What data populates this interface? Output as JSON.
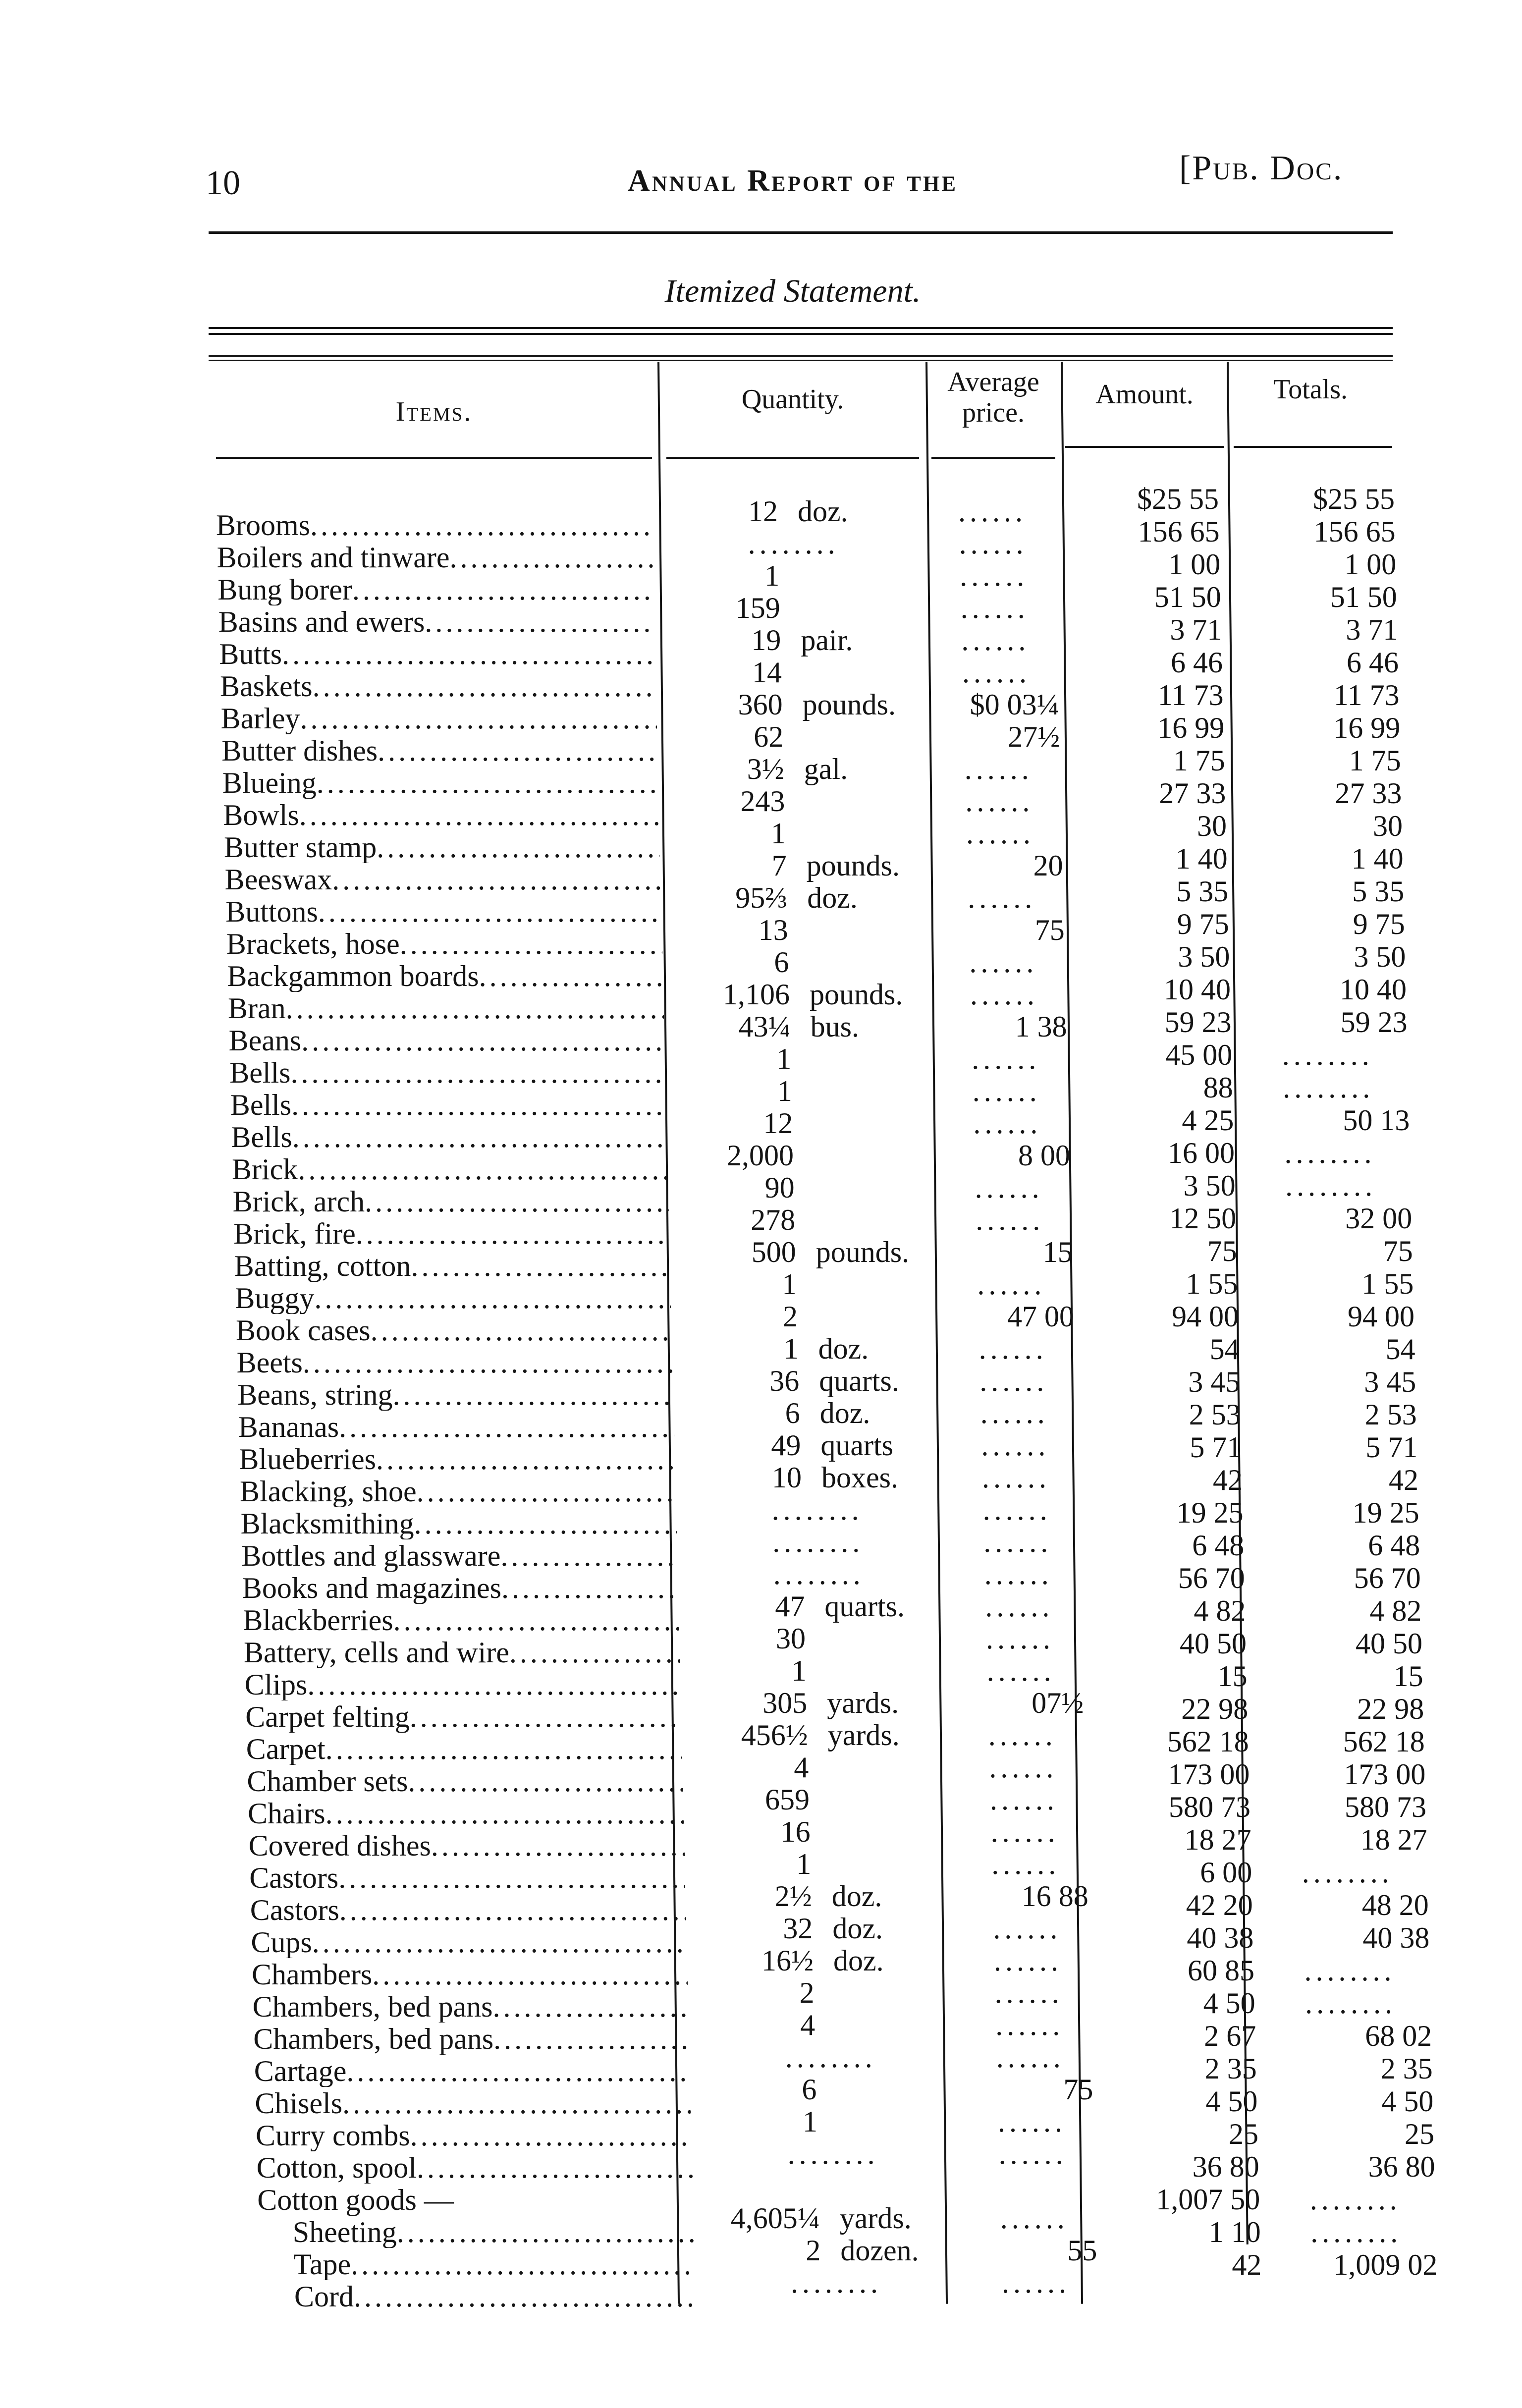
{
  "header": {
    "page_number": "10",
    "running_head": "Annual Report of the",
    "doc_ref": "[Pub. Doc."
  },
  "title": "Itemized Statement.",
  "columns": {
    "items": "Items.",
    "quantity": "Quantity.",
    "average_price_1": "Average",
    "average_price_2": "price.",
    "amount": "Amount.",
    "totals": "Totals."
  },
  "items": [
    "Brooms",
    "Boilers and tinware",
    "Bung borer",
    "Basins and ewers",
    "Butts",
    "Baskets",
    "Barley",
    "Butter dishes",
    "Blueing",
    "Bowls",
    "Butter stamp",
    "Beeswax",
    "Buttons",
    "Brackets, hose",
    "Backgammon boards",
    "Bran",
    "Beans",
    "Bells",
    "Bells",
    "Bells",
    "Brick",
    "Brick, arch",
    "Brick, fire",
    "Batting, cotton",
    "Buggy",
    "Book cases",
    "Beets",
    "Beans, string",
    "Bananas",
    "Blueberries",
    "Blacking, shoe",
    "Blacksmithing",
    "Bottles and glassware",
    "Books and magazines",
    "Blackberries",
    "Battery, cells and wire",
    "Clips",
    "Carpet felting",
    "Carpet",
    "Chamber sets",
    "Chairs",
    "Covered dishes",
    "Castors",
    "Castors",
    "Cups",
    "Chambers",
    "Chambers, bed pans",
    "Chambers, bed pans",
    "Cartage",
    "Chisels",
    "Curry combs",
    "Cotton, spool",
    "Cotton goods —",
    "Sheeting",
    "Tape",
    "Cord"
  ],
  "quantity": [
    "12",
    "........",
    "1",
    "159",
    "19",
    "14",
    "360",
    "62",
    "3½",
    "243",
    "1",
    "7",
    "95⅔",
    "13",
    "6",
    "1,106",
    "43¼",
    "1",
    "1",
    "12",
    "2,000",
    "90",
    "278",
    "500",
    "1",
    "2",
    "1",
    "36",
    "6",
    "49",
    "10",
    "........",
    "........",
    "........",
    "47",
    "30",
    "1",
    "305",
    "456½",
    "4",
    "659",
    "16",
    "1",
    "2½",
    "32",
    "16½",
    "2",
    "4",
    "........",
    "6",
    "1",
    "........",
    "",
    "4,605¼",
    "2",
    "........"
  ],
  "quantity_units": [
    "doz.",
    "",
    "",
    "",
    "pair.",
    "",
    "pounds.",
    "",
    "gal.",
    "",
    "",
    "pounds.",
    "doz.",
    "",
    "",
    "pounds.",
    "bus.",
    "",
    "",
    "",
    "",
    "",
    "",
    "pounds.",
    "",
    "",
    "doz.",
    "quarts.",
    "doz.",
    "quarts",
    "boxes.",
    "",
    "",
    "",
    "quarts.",
    "",
    "",
    "yards.",
    "yards.",
    "",
    "",
    "",
    "",
    "doz.",
    "doz.",
    "doz.",
    "",
    "",
    "",
    "",
    "",
    "",
    "",
    "yards.",
    "dozen.",
    ""
  ],
  "average_price": [
    "......",
    "......",
    "......",
    "......",
    "......",
    "......",
    "$0 03¼",
    "27½",
    "......",
    "......",
    "......",
    "20",
    "......",
    "75",
    "......",
    "......",
    "1 38",
    "......",
    "......",
    "......",
    "8 00",
    "......",
    "......",
    "15",
    "......",
    "47 00",
    "......",
    "......",
    "......",
    "......",
    "......",
    "......",
    "......",
    "......",
    "......",
    "......",
    "......",
    "07½",
    "......",
    "......",
    "......",
    "......",
    "......",
    "16 88",
    "......",
    "......",
    "......",
    "......",
    "......",
    "75",
    "......",
    "......",
    "",
    "......",
    "55",
    "......"
  ],
  "amount": [
    "$25 55",
    "156 65",
    "1 00",
    "51 50",
    "3 71",
    "6 46",
    "11 73",
    "16 99",
    "1 75",
    "27 33",
    "30",
    "1 40",
    "5 35",
    "9 75",
    "3 50",
    "10 40",
    "59 23",
    "45 00",
    "88",
    "4 25",
    "16 00",
    "3 50",
    "12 50",
    "75",
    "1 55",
    "94 00",
    "54",
    "3 45",
    "2 53",
    "5 71",
    "42",
    "19 25",
    "6 48",
    "56 70",
    "4 82",
    "40 50",
    "15",
    "22 98",
    "562 18",
    "173 00",
    "580 73",
    "18 27",
    "6 00",
    "42 20",
    "40 38",
    "60 85",
    "4 50",
    "2 67",
    "2 35",
    "4 50",
    "25",
    "36 80",
    "1,007 50",
    "1 10",
    "42"
  ],
  "totals": [
    "$25 55",
    "156 65",
    "1 00",
    "51 50",
    "3 71",
    "6 46",
    "11 73",
    "16 99",
    "1 75",
    "27 33",
    "30",
    "1 40",
    "5 35",
    "9 75",
    "3 50",
    "10 40",
    "59 23",
    "........",
    "........",
    "50 13",
    "........",
    "........",
    "32 00",
    "75",
    "1 55",
    "94 00",
    "54",
    "3 45",
    "2 53",
    "5 71",
    "42",
    "19 25",
    "6 48",
    "56 70",
    "4 82",
    "40 50",
    "15",
    "22 98",
    "562 18",
    "173 00",
    "580 73",
    "18 27",
    "........",
    "48 20",
    "40 38",
    "........",
    "........",
    "68 02",
    "2 35",
    "4 50",
    "25",
    "36 80",
    "........",
    "........",
    "1,009 02"
  ]
}
